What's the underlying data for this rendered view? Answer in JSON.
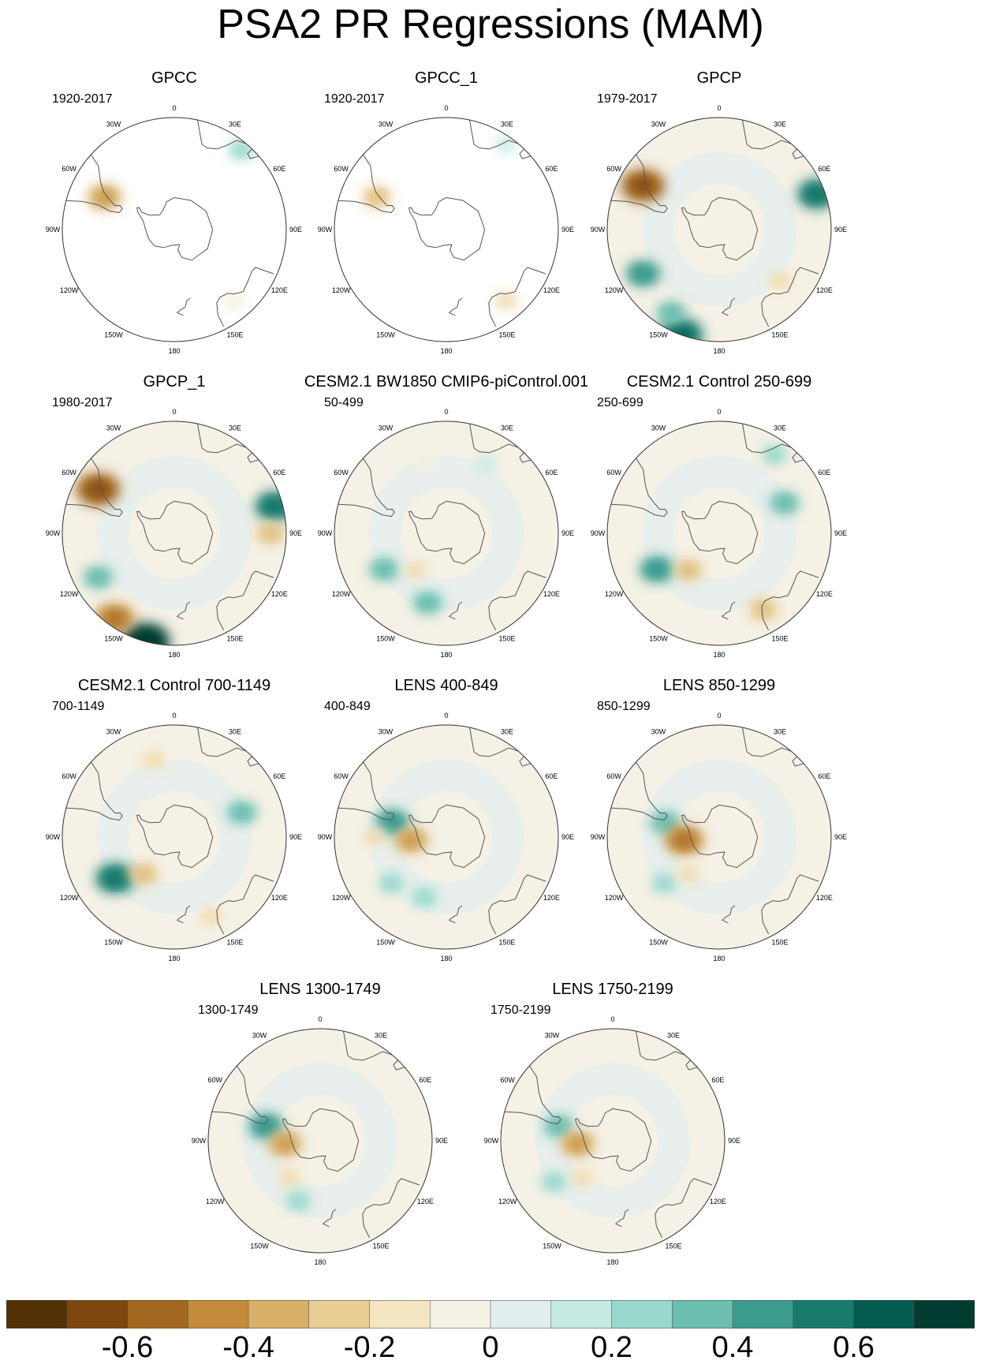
{
  "title": "PSA2 PR Regressions (MAM)",
  "lon_labels": [
    "0",
    "30E",
    "60E",
    "90E",
    "120E",
    "150E",
    "180",
    "150W",
    "120W",
    "90W",
    "60W",
    "30W"
  ],
  "palette": {
    "colors": [
      "#543005",
      "#7d470e",
      "#a36720",
      "#c48b3a",
      "#d8b06a",
      "#e8cd94",
      "#f4e5c3",
      "#f5f1e6",
      "#e2eeee",
      "#c6e9e4",
      "#99d8cc",
      "#6bbeb0",
      "#3b9b8e",
      "#187a6d",
      "#035d50",
      "#003c30"
    ],
    "tick_labels": [
      "-0.6",
      "-0.4",
      "-0.2",
      "0",
      "0.2",
      "0.4",
      "0.6"
    ]
  },
  "chart_data": [
    {
      "type": "heatmap",
      "title": "GPCC",
      "period": "1920-2017",
      "coverage": "land-only",
      "features": [
        {
          "lon": -65,
          "lat": -42,
          "value": -0.4
        },
        {
          "lon": 40,
          "lat": -25,
          "value": 0.2
        },
        {
          "lon": 140,
          "lat": -32,
          "value": -0.1
        }
      ]
    },
    {
      "type": "heatmap",
      "title": "GPCC_1",
      "period": "1920-2017",
      "coverage": "land-only",
      "features": [
        {
          "lon": -65,
          "lat": -42,
          "value": -0.3
        },
        {
          "lon": 35,
          "lat": -25,
          "value": 0.1
        },
        {
          "lon": 140,
          "lat": -32,
          "value": -0.2
        }
      ]
    },
    {
      "type": "heatmap",
      "title": "GPCP",
      "period": "1979-2017",
      "coverage": "global",
      "features": [
        {
          "lon": -60,
          "lat": -35,
          "value": -0.6
        },
        {
          "lon": -160,
          "lat": -20,
          "value": 0.6
        },
        {
          "lon": -120,
          "lat": -35,
          "value": 0.4
        },
        {
          "lon": 70,
          "lat": -25,
          "value": 0.5
        },
        {
          "lon": 130,
          "lat": -40,
          "value": -0.2
        },
        {
          "lon": -150,
          "lat": -30,
          "value": 0.3
        }
      ]
    },
    {
      "type": "heatmap",
      "title": "GPCP_1",
      "period": "1980-2017",
      "coverage": "global",
      "features": [
        {
          "lon": -60,
          "lat": -35,
          "value": -0.6
        },
        {
          "lon": -165,
          "lat": -20,
          "value": 0.7
        },
        {
          "lon": -145,
          "lat": -25,
          "value": -0.5
        },
        {
          "lon": 75,
          "lat": -25,
          "value": 0.5
        },
        {
          "lon": 90,
          "lat": -30,
          "value": -0.3
        },
        {
          "lon": -120,
          "lat": -35,
          "value": 0.3
        }
      ]
    },
    {
      "type": "heatmap",
      "title": "CESM2.1 BW1850 CMIP6-piControl.001",
      "period": "50-499",
      "coverage": "global",
      "features": [
        {
          "lon": -120,
          "lat": -45,
          "value": 0.3
        },
        {
          "lon": -165,
          "lat": -45,
          "value": 0.3
        },
        {
          "lon": -140,
          "lat": -60,
          "value": -0.2
        },
        {
          "lon": -15,
          "lat": -45,
          "value": -0.1
        },
        {
          "lon": 30,
          "lat": -40,
          "value": 0.1
        }
      ]
    },
    {
      "type": "heatmap",
      "title": "CESM2.1 Control 250-699",
      "period": "250-699",
      "coverage": "global",
      "features": [
        {
          "lon": -120,
          "lat": -45,
          "value": 0.4
        },
        {
          "lon": -140,
          "lat": -60,
          "value": -0.3
        },
        {
          "lon": 150,
          "lat": -35,
          "value": -0.3
        },
        {
          "lon": 65,
          "lat": -45,
          "value": 0.3
        },
        {
          "lon": 35,
          "lat": -30,
          "value": 0.2
        }
      ]
    },
    {
      "type": "heatmap",
      "title": "CESM2.1 Control 700-1149",
      "period": "700-1149",
      "coverage": "global",
      "features": [
        {
          "lon": -125,
          "lat": -45,
          "value": 0.5
        },
        {
          "lon": -140,
          "lat": -60,
          "value": -0.3
        },
        {
          "lon": -15,
          "lat": -40,
          "value": -0.2
        },
        {
          "lon": 70,
          "lat": -45,
          "value": 0.3
        },
        {
          "lon": 155,
          "lat": -35,
          "value": -0.2
        }
      ]
    },
    {
      "type": "heatmap",
      "title": "LENS 400-849",
      "period": "400-849",
      "coverage": "global",
      "features": [
        {
          "lon": -75,
          "lat": -55,
          "value": 0.4
        },
        {
          "lon": -95,
          "lat": -68,
          "value": -0.4
        },
        {
          "lon": -130,
          "lat": -45,
          "value": 0.2
        },
        {
          "lon": -160,
          "lat": -50,
          "value": 0.2
        },
        {
          "lon": -90,
          "lat": -45,
          "value": -0.2
        }
      ]
    },
    {
      "type": "heatmap",
      "title": "LENS 850-1299",
      "period": "850-1299",
      "coverage": "global",
      "features": [
        {
          "lon": -75,
          "lat": -55,
          "value": 0.3
        },
        {
          "lon": -95,
          "lat": -68,
          "value": -0.5
        },
        {
          "lon": -130,
          "lat": -45,
          "value": 0.2
        },
        {
          "lon": -140,
          "lat": -60,
          "value": -0.2
        }
      ]
    },
    {
      "type": "heatmap",
      "title": "LENS 1300-1749",
      "period": "1300-1749",
      "coverage": "global",
      "features": [
        {
          "lon": -75,
          "lat": -55,
          "value": 0.4
        },
        {
          "lon": -95,
          "lat": -68,
          "value": -0.4
        },
        {
          "lon": -140,
          "lat": -60,
          "value": -0.2
        },
        {
          "lon": -160,
          "lat": -50,
          "value": 0.2
        }
      ]
    },
    {
      "type": "heatmap",
      "title": "LENS 1750-2199",
      "period": "1750-2199",
      "coverage": "global",
      "features": [
        {
          "lon": -75,
          "lat": -55,
          "value": 0.3
        },
        {
          "lon": -95,
          "lat": -68,
          "value": -0.4
        },
        {
          "lon": -140,
          "lat": -60,
          "value": -0.2
        },
        {
          "lon": -125,
          "lat": -45,
          "value": 0.2
        }
      ]
    }
  ]
}
